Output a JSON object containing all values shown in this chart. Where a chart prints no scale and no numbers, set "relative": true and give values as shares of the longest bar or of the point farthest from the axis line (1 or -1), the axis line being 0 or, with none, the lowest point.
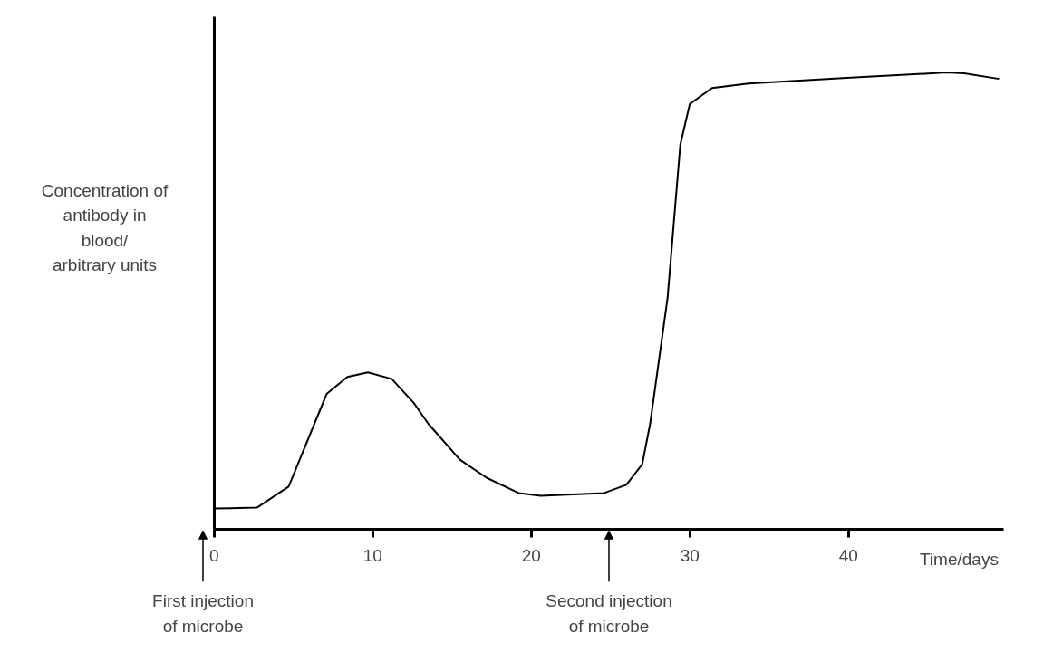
{
  "chart_data": {
    "type": "line",
    "relative": true,
    "ylabel": "Concentration of\nantibody in\nblood/\narbitrary units",
    "xlabel": "Time/days",
    "color": "#000000",
    "x": [
      0,
      2.7,
      4.7,
      7.1,
      8.4,
      9.7,
      11.2,
      12.6,
      13.5,
      15.5,
      17.2,
      19.2,
      20.6,
      24.6,
      26.0,
      27.0,
      27.5,
      28.6,
      29.4,
      30.0,
      31.4,
      33.7,
      39.9,
      46.2,
      47.3,
      49.5
    ],
    "values": [
      0.045,
      0.047,
      0.093,
      0.296,
      0.333,
      0.343,
      0.329,
      0.276,
      0.231,
      0.152,
      0.112,
      0.079,
      0.073,
      0.079,
      0.097,
      0.142,
      0.231,
      0.507,
      0.842,
      0.931,
      0.966,
      0.976,
      0.988,
      1.0,
      0.998,
      0.986
    ],
    "xlim": [
      0,
      49.8
    ],
    "xticks": [
      0,
      10,
      20,
      30,
      40
    ],
    "grid": false,
    "annotations": [
      "First injection\nof microbe",
      "Second injection\nof microbe"
    ]
  }
}
